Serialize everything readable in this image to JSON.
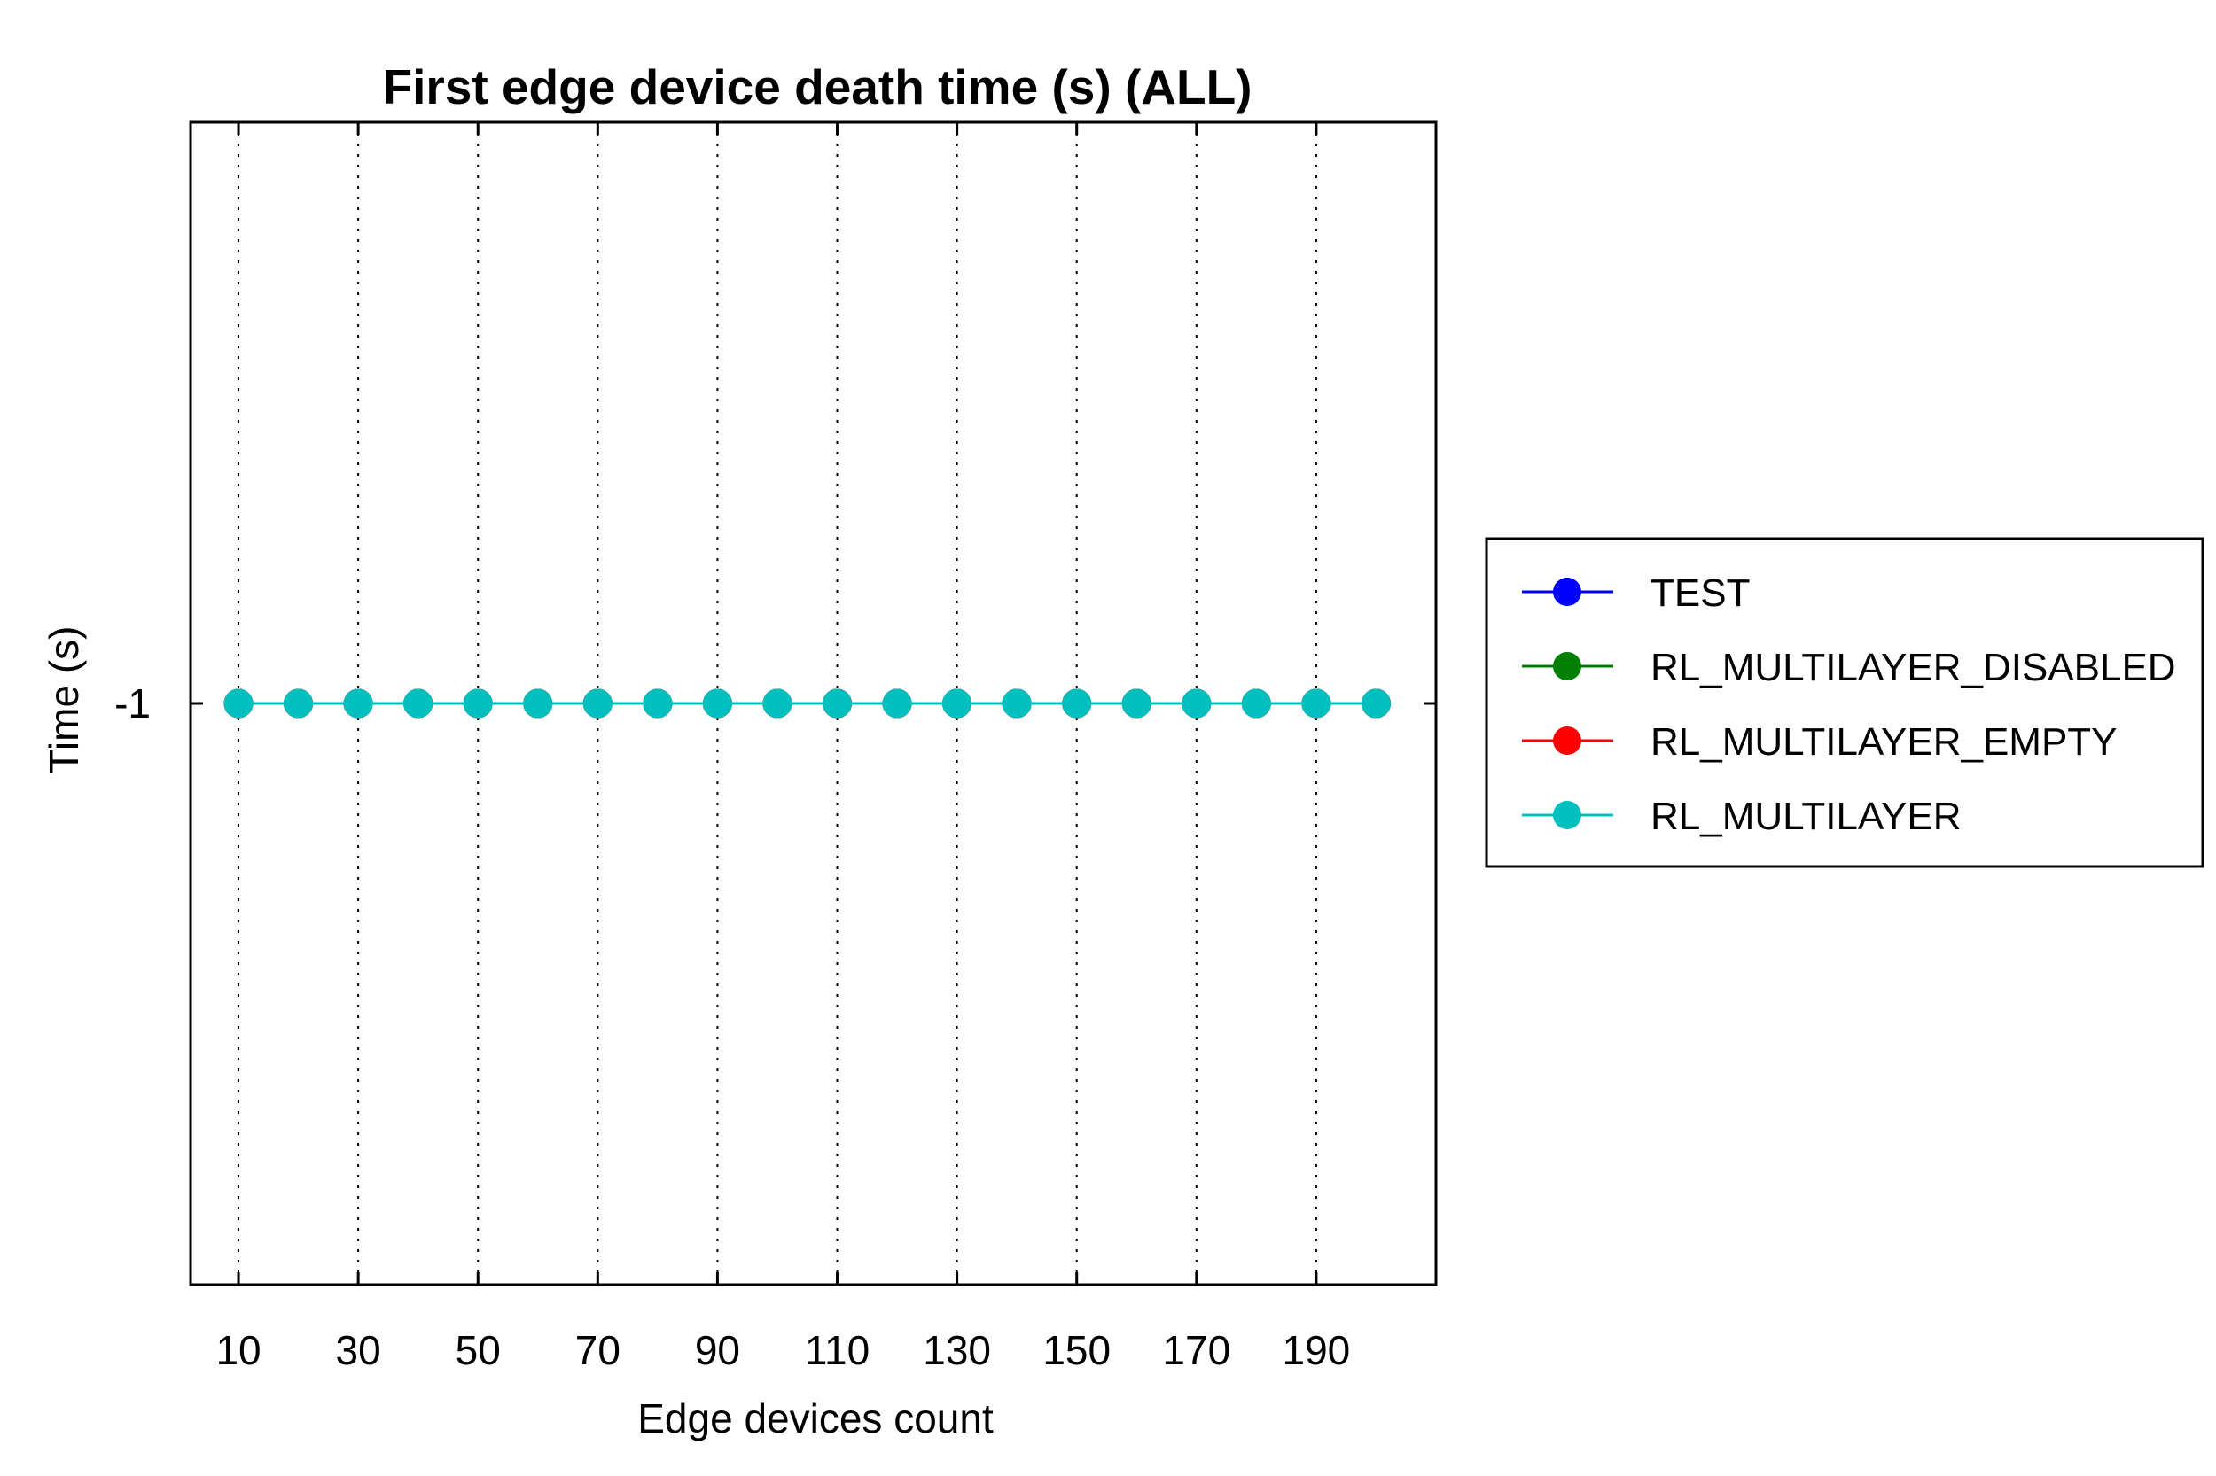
{
  "chart_data": {
    "type": "line",
    "title": "First edge device death time (s) (ALL)",
    "xlabel": "Edge devices count",
    "ylabel": "Time (s)",
    "x": [
      10,
      20,
      30,
      40,
      50,
      60,
      70,
      80,
      90,
      100,
      110,
      120,
      130,
      140,
      150,
      160,
      170,
      180,
      190,
      200
    ],
    "xticks": [
      10,
      30,
      50,
      70,
      90,
      110,
      130,
      150,
      170,
      190
    ],
    "xlim": [
      2,
      210
    ],
    "yticks": [
      -1
    ],
    "ylim": [
      -2,
      0
    ],
    "grid": "x-dotted",
    "legend_position": "right",
    "series": [
      {
        "name": "TEST",
        "color": "#0000ff",
        "values": [
          -1,
          -1,
          -1,
          -1,
          -1,
          -1,
          -1,
          -1,
          -1,
          -1,
          -1,
          -1,
          -1,
          -1,
          -1,
          -1,
          -1,
          -1,
          -1,
          -1
        ]
      },
      {
        "name": "RL_MULTILAYER_DISABLED",
        "color": "#007f00",
        "values": [
          -1,
          -1,
          -1,
          -1,
          -1,
          -1,
          -1,
          -1,
          -1,
          -1,
          -1,
          -1,
          -1,
          -1,
          -1,
          -1,
          -1,
          -1,
          -1,
          -1
        ]
      },
      {
        "name": "RL_MULTILAYER_EMPTY",
        "color": "#ff0000",
        "values": [
          -1,
          -1,
          -1,
          -1,
          -1,
          -1,
          -1,
          -1,
          -1,
          -1,
          -1,
          -1,
          -1,
          -1,
          -1,
          -1,
          -1,
          -1,
          -1,
          -1
        ]
      },
      {
        "name": "RL_MULTILAYER",
        "color": "#00bfbf",
        "values": [
          -1,
          -1,
          -1,
          -1,
          -1,
          -1,
          -1,
          -1,
          -1,
          -1,
          -1,
          -1,
          -1,
          -1,
          -1,
          -1,
          -1,
          -1,
          -1,
          -1
        ]
      }
    ]
  }
}
